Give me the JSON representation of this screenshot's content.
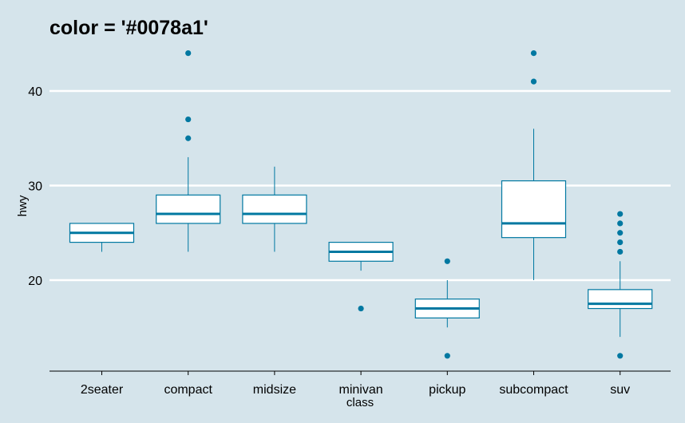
{
  "chart_data": {
    "type": "boxplot",
    "title": "color = '#0078a1'",
    "xlabel": "class",
    "ylabel": "hwy",
    "ylim": [
      10.5,
      45.5
    ],
    "yticks": [
      20,
      30,
      40
    ],
    "grid": "horizontal-major",
    "colors": {
      "background": "#d5e4eb",
      "box_line": "#0078a1",
      "box_fill": "#ffffff",
      "grid": "#ffffff"
    },
    "categories": [
      "2seater",
      "compact",
      "midsize",
      "minivan",
      "pickup",
      "subcompact",
      "suv"
    ],
    "boxes": [
      {
        "category": "2seater",
        "whisker_low": 23,
        "q1": 24,
        "median": 25,
        "q3": 26,
        "whisker_high": 26,
        "outliers": []
      },
      {
        "category": "compact",
        "whisker_low": 23,
        "q1": 26,
        "median": 27,
        "q3": 29,
        "whisker_high": 33,
        "outliers": [
          35,
          37,
          44
        ]
      },
      {
        "category": "midsize",
        "whisker_low": 23,
        "q1": 26,
        "median": 27,
        "q3": 29,
        "whisker_high": 32,
        "outliers": []
      },
      {
        "category": "minivan",
        "whisker_low": 21,
        "q1": 22,
        "median": 23,
        "q3": 24,
        "whisker_high": 24,
        "outliers": [
          17
        ]
      },
      {
        "category": "pickup",
        "whisker_low": 15,
        "q1": 16,
        "median": 17,
        "q3": 18,
        "whisker_high": 20,
        "outliers": [
          12,
          22
        ]
      },
      {
        "category": "subcompact",
        "whisker_low": 20,
        "q1": 24.5,
        "median": 26,
        "q3": 30.5,
        "whisker_high": 36,
        "outliers": [
          41,
          44
        ]
      },
      {
        "category": "suv",
        "whisker_low": 14,
        "q1": 17,
        "median": 17.5,
        "q3": 19,
        "whisker_high": 22,
        "outliers": [
          12,
          23,
          24,
          25,
          26,
          27
        ]
      }
    ]
  }
}
